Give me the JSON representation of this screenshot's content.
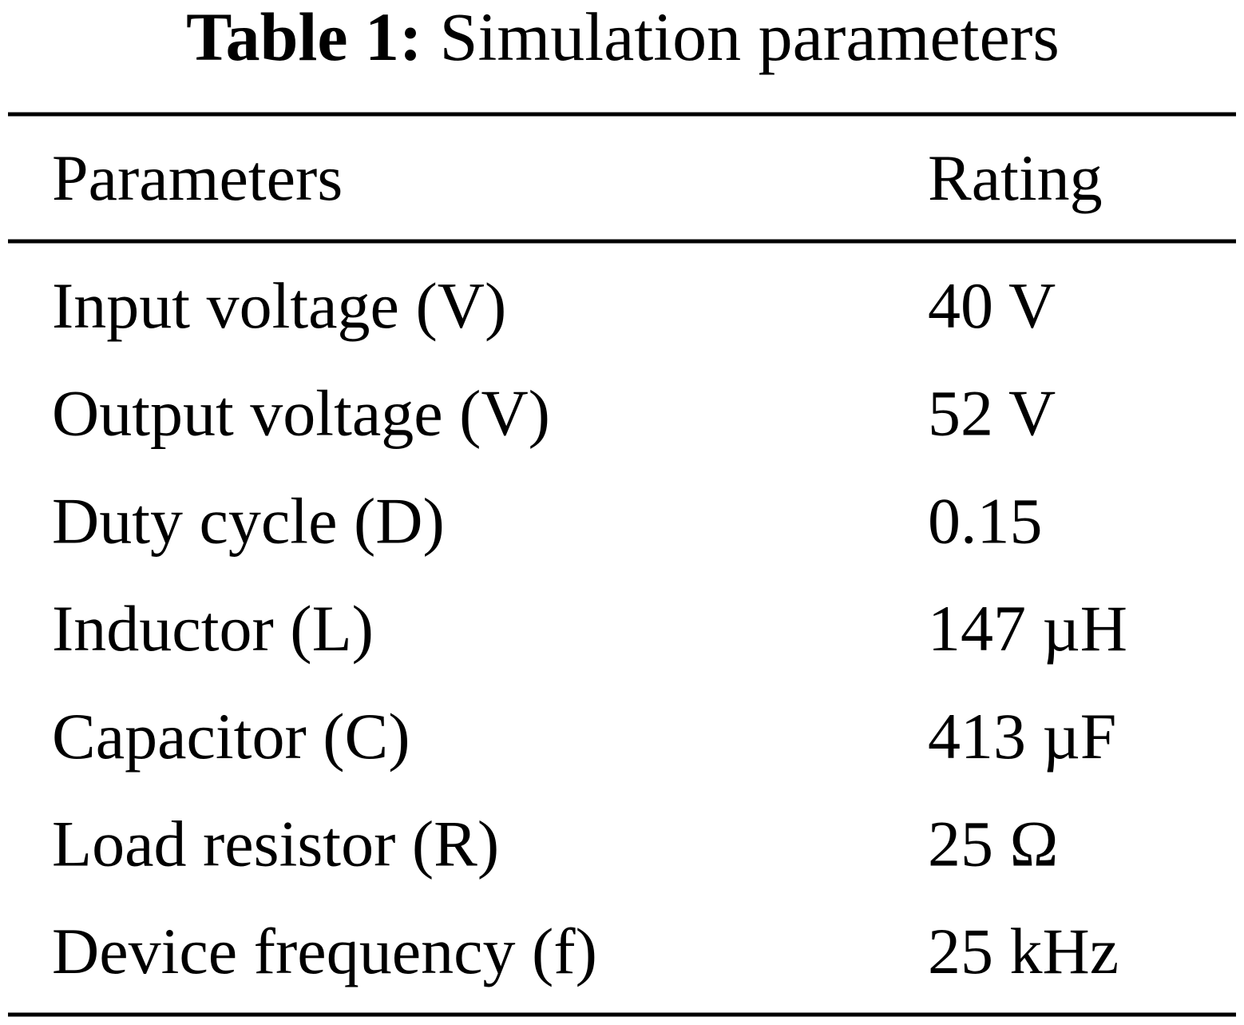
{
  "caption": {
    "label": "Table 1:",
    "text": "Simulation parameters"
  },
  "table": {
    "header": [
      "Parameters",
      "Rating"
    ],
    "rows": [
      [
        "Input voltage (V)",
        "40 V"
      ],
      [
        "Output voltage (V)",
        "52 V"
      ],
      [
        "Duty cycle (D)",
        "0.15"
      ],
      [
        "Inductor (L)",
        "147 µH"
      ],
      [
        "Capacitor (C)",
        "413 µF"
      ],
      [
        "Load resistor (R)",
        "25 Ω"
      ],
      [
        "Device frequency (f)",
        "25 kHz"
      ]
    ]
  }
}
